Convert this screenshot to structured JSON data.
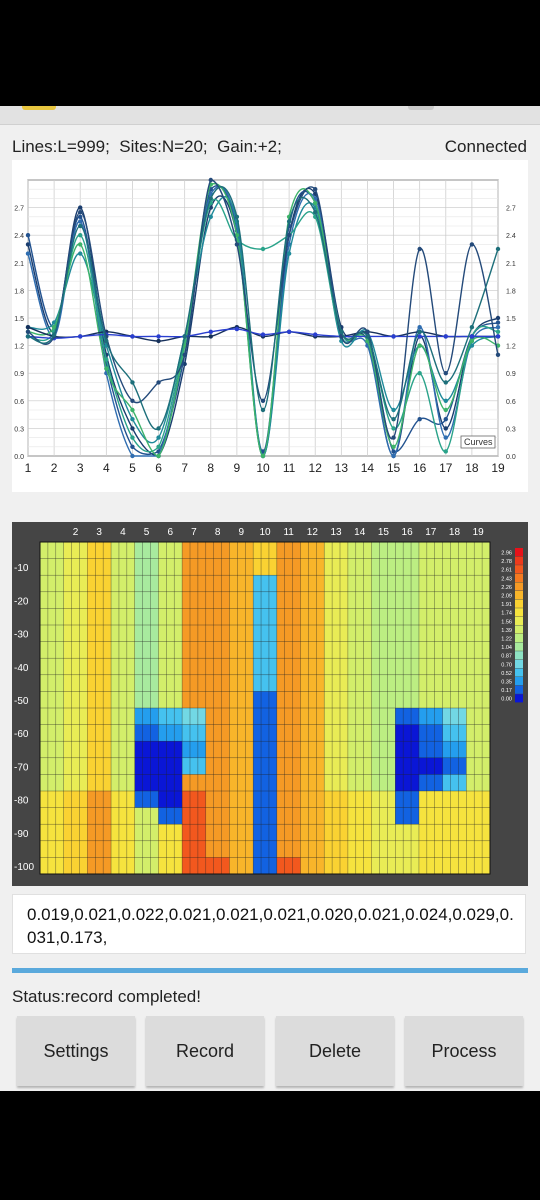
{
  "header": {
    "lines": "Lines:L=999;",
    "sites": "Sites:N=20;",
    "gain": "Gain:+2;",
    "connection": "Connected"
  },
  "chart_data": [
    {
      "type": "line",
      "legend_label": "Curves",
      "x_ticks": [
        1,
        2,
        3,
        4,
        5,
        6,
        7,
        8,
        9,
        10,
        11,
        12,
        13,
        14,
        15,
        16,
        17,
        18,
        19
      ],
      "y_ticks": [
        "0.0",
        "0.3",
        "0.6",
        "0.9",
        "1.2",
        "1.5",
        "1.8",
        "2.1",
        "2.4",
        "2.7"
      ],
      "ylim": [
        0,
        3.0
      ],
      "xlim": [
        1,
        19
      ],
      "series": [
        {
          "color": "#1a3d6e",
          "values": [
            2.3,
            1.35,
            2.7,
            1.1,
            0.3,
            0.0,
            1.0,
            2.7,
            2.4,
            0.0,
            2.4,
            2.85,
            1.4,
            1.25,
            0.0,
            1.3,
            0.3,
            1.3,
            1.5
          ]
        },
        {
          "color": "#22528f",
          "values": [
            2.4,
            1.4,
            2.6,
            1.0,
            0.1,
            0.05,
            1.1,
            2.9,
            2.45,
            0.05,
            2.5,
            2.75,
            1.3,
            1.3,
            0.05,
            0.4,
            0.4,
            1.3,
            1.45
          ]
        },
        {
          "color": "#2f6db0",
          "values": [
            2.2,
            1.3,
            2.55,
            0.9,
            0.0,
            0.0,
            1.2,
            2.85,
            2.5,
            0.0,
            2.3,
            2.8,
            1.35,
            1.2,
            0.0,
            1.4,
            0.2,
            1.25,
            1.4
          ]
        },
        {
          "color": "#1f8a9a",
          "values": [
            1.4,
            1.45,
            2.2,
            1.2,
            0.4,
            0.2,
            1.3,
            2.6,
            2.55,
            0.0,
            2.2,
            2.7,
            1.25,
            1.35,
            0.5,
            1.2,
            0.6,
            1.2,
            1.3
          ]
        },
        {
          "color": "#2aa38a",
          "values": [
            1.3,
            1.35,
            2.4,
            1.05,
            0.2,
            0.1,
            1.25,
            2.75,
            2.35,
            2.25,
            2.4,
            2.6,
            1.3,
            1.3,
            0.3,
            0.9,
            0.05,
            1.3,
            1.35
          ]
        },
        {
          "color": "#3db36a",
          "values": [
            1.35,
            1.4,
            2.3,
            0.95,
            0.5,
            0.0,
            1.2,
            2.95,
            2.4,
            0.0,
            2.6,
            2.75,
            1.35,
            1.25,
            0.1,
            1.2,
            0.5,
            1.25,
            1.2
          ]
        },
        {
          "color": "#16305a",
          "values": [
            1.4,
            1.3,
            1.3,
            1.35,
            1.3,
            1.25,
            1.3,
            1.3,
            1.4,
            1.3,
            1.35,
            1.3,
            1.3,
            1.35,
            1.3,
            1.35,
            1.3,
            1.3,
            1.3
          ]
        },
        {
          "color": "#2a3fd0",
          "values": [
            1.3,
            1.28,
            1.3,
            1.32,
            1.3,
            1.3,
            1.3,
            1.35,
            1.38,
            1.32,
            1.35,
            1.32,
            1.3,
            1.3,
            1.3,
            1.3,
            1.3,
            1.3,
            1.3
          ]
        },
        {
          "color": "#244a7a",
          "values": [
            1.35,
            1.3,
            2.65,
            1.3,
            0.6,
            0.8,
            1.1,
            3.0,
            2.3,
            0.6,
            2.4,
            2.9,
            1.3,
            1.35,
            0.2,
            2.25,
            0.9,
            2.3,
            1.1
          ]
        },
        {
          "color": "#1d6f7a",
          "values": [
            1.3,
            1.32,
            2.5,
            1.25,
            0.8,
            0.3,
            1.3,
            2.8,
            2.6,
            0.5,
            2.55,
            2.65,
            1.35,
            1.3,
            0.4,
            1.35,
            0.8,
            1.4,
            2.25
          ]
        }
      ]
    },
    {
      "type": "heatmap",
      "x_ticks": [
        2,
        3,
        4,
        5,
        6,
        7,
        8,
        9,
        10,
        11,
        12,
        13,
        14,
        15,
        16,
        17,
        18,
        19
      ],
      "y_ticks": [
        "-10",
        "-20",
        "-30",
        "-40",
        "-50",
        "-60",
        "-70",
        "-80",
        "-90",
        "-100"
      ],
      "legend": [
        {
          "label": "2.96",
          "color": "#e8121a"
        },
        {
          "label": "2.78",
          "color": "#ee3a1c"
        },
        {
          "label": "2.61",
          "color": "#f2581e"
        },
        {
          "label": "2.43",
          "color": "#f47a20"
        },
        {
          "label": "2.26",
          "color": "#f59a25"
        },
        {
          "label": "2.09",
          "color": "#f8b52a"
        },
        {
          "label": "1.91",
          "color": "#fad232"
        },
        {
          "label": "1.74",
          "color": "#f6e33e"
        },
        {
          "label": "1.56",
          "color": "#e9ec55"
        },
        {
          "label": "1.39",
          "color": "#d3ee6a"
        },
        {
          "label": "1.22",
          "color": "#bcee82"
        },
        {
          "label": "1.04",
          "color": "#a8ea9e"
        },
        {
          "label": "0.87",
          "color": "#8ee2c3"
        },
        {
          "label": "0.70",
          "color": "#72d8e4"
        },
        {
          "label": "0.52",
          "color": "#45c2ef"
        },
        {
          "label": "0.35",
          "color": "#249eee"
        },
        {
          "label": "0.17",
          "color": "#1262e2"
        },
        {
          "label": "0.00",
          "color": "#0a16d6"
        }
      ]
    }
  ],
  "data_values": "0.019,0.021,0.022,0.021,0.021,0.021,0.020,0.021,0.024,0.029,0.031,0.173,",
  "status": "Status:record completed!",
  "buttons": {
    "settings": "Settings",
    "record": "Record",
    "delete": "Delete",
    "process": "Process"
  }
}
